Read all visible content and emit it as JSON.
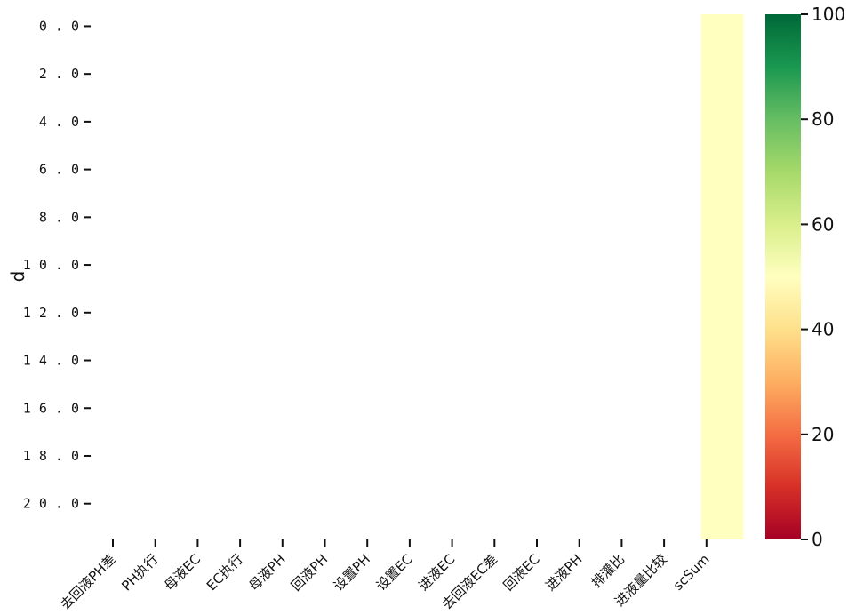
{
  "chart_data": {
    "type": "heatmap",
    "title": "",
    "xlabel": "",
    "ylabel": "d",
    "x_categories": [
      "去回液PH差",
      "PH执行",
      "母液EC",
      "EC执行",
      "母液PH",
      "回液PH",
      "设置PH",
      "设置EC",
      "进液EC",
      "去回液EC差",
      "回液EC",
      "进液PH",
      "排灌比",
      "进液量比较",
      "scSum"
    ],
    "y_ticks": [
      "0.0",
      "2.0",
      "4.0",
      "6.0",
      "8.0",
      "10.0",
      "12.0",
      "14.0",
      "16.0",
      "18.0",
      "20.0"
    ],
    "cells": [
      {
        "x": "scSum",
        "y_range": [
          0,
          21
        ],
        "value": 50
      }
    ],
    "colorbar": {
      "colormap": "RdYlGn",
      "range": [
        0,
        100
      ],
      "ticks": [
        "0",
        "20",
        "40",
        "60",
        "80",
        "100"
      ]
    }
  }
}
